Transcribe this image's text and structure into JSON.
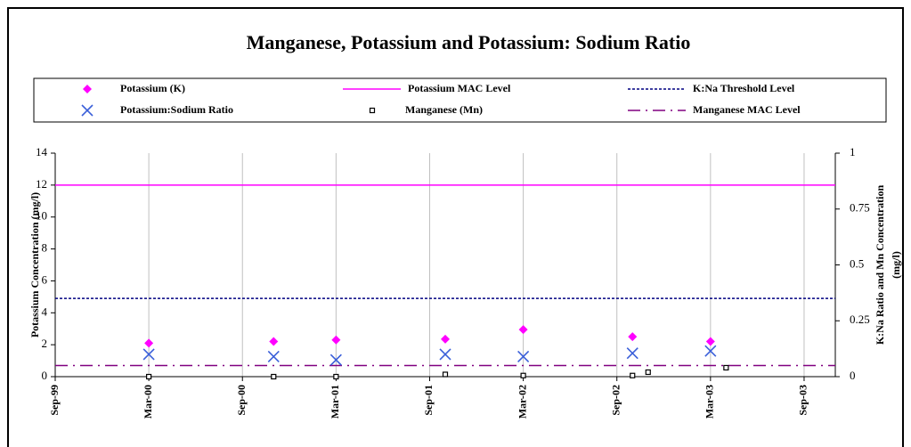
{
  "chart_data": {
    "type": "scatter",
    "title": "Manganese, Potassium and Potassium: Sodium Ratio",
    "ylabel": "Potassium Concentration (mg/l)",
    "y2label": [
      "K:Na Ratio and Mn Concentration",
      "(mg/l)"
    ],
    "xlim": [
      "Sep-99",
      "Nov-03"
    ],
    "xticks": [
      "Sep-99",
      "Mar-00",
      "Sep-00",
      "Mar-01",
      "Sep-01",
      "Mar-02",
      "Sep-02",
      "Mar-03",
      "Sep-03"
    ],
    "ylim": [
      0,
      14
    ],
    "yticks": [
      0,
      2,
      4,
      6,
      8,
      10,
      12,
      14
    ],
    "y2lim": [
      0,
      1
    ],
    "y2ticks": [
      0,
      0.25,
      0.5,
      0.75,
      1
    ],
    "grid": "x",
    "series": [
      {
        "name": "Potassium (K)",
        "color": "#ff00ff",
        "marker": "diamond",
        "axis": "y",
        "x": [
          "Mar-00",
          "Nov-00",
          "Mar-01",
          "Oct-01",
          "Mar-02",
          "Oct-02",
          "Mar-03"
        ],
        "values": [
          2.1,
          2.2,
          2.3,
          2.35,
          2.95,
          2.5,
          2.2
        ]
      },
      {
        "name": "Potassium MAC Level",
        "color": "#ff00ff",
        "style": "solid",
        "axis": "y",
        "level": 12
      },
      {
        "name": "K:Na Threshold Level",
        "color": "#000080",
        "style": "dotted",
        "axis": "y2",
        "level": 0.35
      },
      {
        "name": "Potassium:Sodium Ratio",
        "color": "#3a5fd9",
        "marker": "x",
        "axis": "y2",
        "x": [
          "Mar-00",
          "Nov-00",
          "Mar-01",
          "Oct-01",
          "Mar-02",
          "Oct-02",
          "Mar-03"
        ],
        "values": [
          0.1,
          0.09,
          0.075,
          0.1,
          0.09,
          0.105,
          0.115
        ]
      },
      {
        "name": "Manganese (Mn)",
        "color": "#000000",
        "marker": "square",
        "axis": "y2",
        "x": [
          "Mar-00",
          "Nov-00",
          "Mar-01",
          "Oct-01",
          "Mar-02",
          "Oct-02",
          "Nov-02",
          "Apr-03"
        ],
        "values": [
          0,
          0,
          0,
          0.01,
          0.005,
          0.005,
          0.02,
          0.04
        ]
      },
      {
        "name": "Manganese MAC Level",
        "color": "#800080",
        "style": "dashdot",
        "axis": "y2",
        "level": 0.05
      }
    ]
  }
}
